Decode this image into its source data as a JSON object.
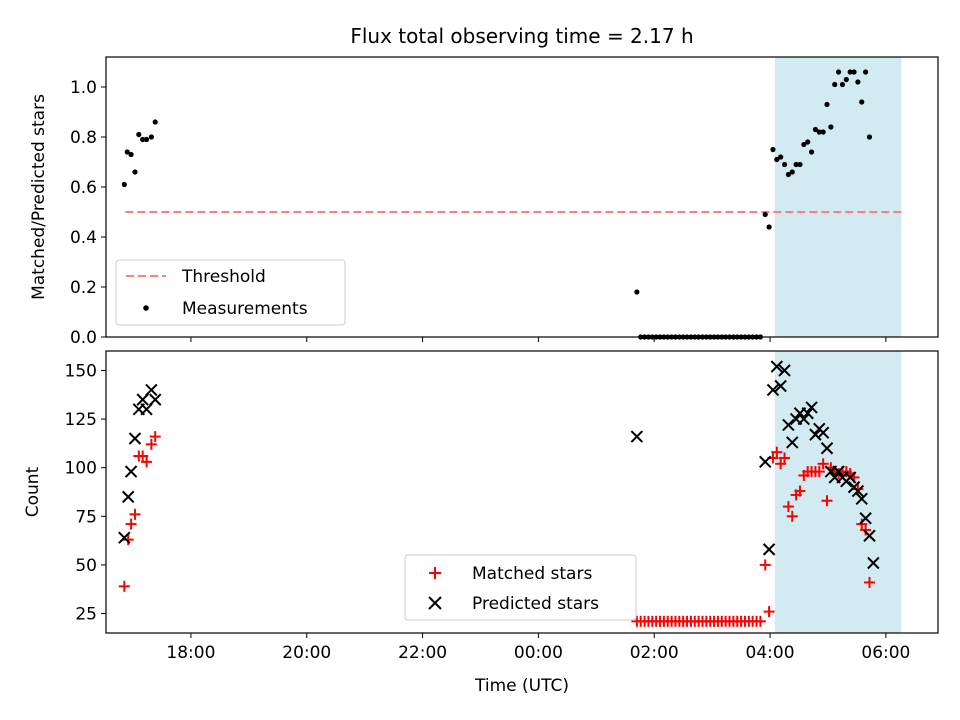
{
  "title": "Flux total observing time = 2.17 h",
  "colors": {
    "threshold": "#ff7f7f",
    "measurement": "#000000",
    "matched": "#ff0000",
    "predicted": "#000000",
    "band": "#add8e6"
  },
  "chart_data": [
    {
      "type": "scatter",
      "ylabel": "Matched/Predicted stars",
      "xlabel": "",
      "ylim": [
        0,
        1.12
      ],
      "xlim": [
        "16:32",
        "06:54"
      ],
      "yticks": [
        "0.0",
        "0.2",
        "0.4",
        "0.6",
        "0.8",
        "1.0"
      ],
      "shaded_band": {
        "x0": "04:05",
        "x1": "06:16"
      },
      "legend": {
        "position": "lower-left",
        "entries": [
          "Threshold",
          "Measurements"
        ]
      },
      "threshold": {
        "name": "Threshold",
        "y": 0.5,
        "x_from": "16:52",
        "x_to": "06:16"
      },
      "series": [
        {
          "name": "Measurements",
          "points": [
            [
              "16:51",
              0.61
            ],
            [
              "16:54",
              0.74
            ],
            [
              "16:58",
              0.73
            ],
            [
              "17:02",
              0.66
            ],
            [
              "17:06",
              0.81
            ],
            [
              "17:10",
              0.79
            ],
            [
              "17:14",
              0.79
            ],
            [
              "17:19",
              0.8
            ],
            [
              "17:23",
              0.86
            ],
            [
              "01:42",
              0.18
            ],
            [
              "01:46",
              0.0
            ],
            [
              "01:50",
              0.0
            ],
            [
              "01:54",
              0.0
            ],
            [
              "01:58",
              0.0
            ],
            [
              "02:02",
              0.0
            ],
            [
              "02:06",
              0.0
            ],
            [
              "02:10",
              0.0
            ],
            [
              "02:14",
              0.0
            ],
            [
              "02:18",
              0.0
            ],
            [
              "02:22",
              0.0
            ],
            [
              "02:26",
              0.0
            ],
            [
              "02:30",
              0.0
            ],
            [
              "02:34",
              0.0
            ],
            [
              "02:38",
              0.0
            ],
            [
              "02:42",
              0.0
            ],
            [
              "02:46",
              0.0
            ],
            [
              "02:50",
              0.0
            ],
            [
              "02:54",
              0.0
            ],
            [
              "02:58",
              0.0
            ],
            [
              "03:02",
              0.0
            ],
            [
              "03:06",
              0.0
            ],
            [
              "03:10",
              0.0
            ],
            [
              "03:14",
              0.0
            ],
            [
              "03:18",
              0.0
            ],
            [
              "03:22",
              0.0
            ],
            [
              "03:26",
              0.0
            ],
            [
              "03:30",
              0.0
            ],
            [
              "03:34",
              0.0
            ],
            [
              "03:38",
              0.0
            ],
            [
              "03:42",
              0.0
            ],
            [
              "03:46",
              0.0
            ],
            [
              "03:50",
              0.0
            ],
            [
              "03:55",
              0.49
            ],
            [
              "03:59",
              0.44
            ],
            [
              "04:03",
              0.75
            ],
            [
              "04:07",
              0.71
            ],
            [
              "04:11",
              0.72
            ],
            [
              "04:15",
              0.69
            ],
            [
              "04:19",
              0.65
            ],
            [
              "04:23",
              0.66
            ],
            [
              "04:27",
              0.69
            ],
            [
              "04:31",
              0.69
            ],
            [
              "04:35",
              0.77
            ],
            [
              "04:39",
              0.78
            ],
            [
              "04:43",
              0.74
            ],
            [
              "04:47",
              0.83
            ],
            [
              "04:51",
              0.82
            ],
            [
              "04:55",
              0.82
            ],
            [
              "04:59",
              0.93
            ],
            [
              "05:03",
              0.84
            ],
            [
              "05:07",
              1.01
            ],
            [
              "05:11",
              1.06
            ],
            [
              "05:15",
              1.01
            ],
            [
              "05:19",
              1.03
            ],
            [
              "05:23",
              1.06
            ],
            [
              "05:27",
              1.06
            ],
            [
              "05:31",
              1.02
            ],
            [
              "05:35",
              0.94
            ],
            [
              "05:39",
              1.06
            ],
            [
              "05:43",
              0.8
            ]
          ]
        }
      ]
    },
    {
      "type": "scatter",
      "xlabel": "Time (UTC)",
      "ylabel": "Count",
      "ylim": [
        15,
        160
      ],
      "xlim": [
        "16:32",
        "06:54"
      ],
      "xticks": [
        "18:00",
        "20:00",
        "22:00",
        "00:00",
        "02:00",
        "04:00",
        "06:00"
      ],
      "yticks": [
        "25",
        "50",
        "75",
        "100",
        "125",
        "150"
      ],
      "shaded_band": {
        "x0": "04:05",
        "x1": "06:16"
      },
      "legend": {
        "position": "lower-center",
        "entries": [
          "Matched stars",
          "Predicted stars"
        ]
      },
      "series": [
        {
          "name": "Matched stars",
          "marker": "plus",
          "points": [
            [
              "16:51",
              39
            ],
            [
              "16:55",
              63
            ],
            [
              "16:58",
              71
            ],
            [
              "17:02",
              76
            ],
            [
              "17:06",
              106
            ],
            [
              "17:10",
              106
            ],
            [
              "17:14",
              103
            ],
            [
              "17:19",
              112
            ],
            [
              "17:23",
              116
            ],
            [
              "01:42",
              21
            ],
            [
              "01:46",
              21
            ],
            [
              "01:50",
              21
            ],
            [
              "01:54",
              21
            ],
            [
              "01:58",
              21
            ],
            [
              "02:02",
              21
            ],
            [
              "02:06",
              21
            ],
            [
              "02:10",
              21
            ],
            [
              "02:14",
              21
            ],
            [
              "02:18",
              21
            ],
            [
              "02:22",
              21
            ],
            [
              "02:26",
              21
            ],
            [
              "02:30",
              21
            ],
            [
              "02:34",
              21
            ],
            [
              "02:38",
              21
            ],
            [
              "02:42",
              21
            ],
            [
              "02:46",
              21
            ],
            [
              "02:50",
              21
            ],
            [
              "02:54",
              21
            ],
            [
              "02:58",
              21
            ],
            [
              "03:02",
              21
            ],
            [
              "03:06",
              21
            ],
            [
              "03:10",
              21
            ],
            [
              "03:14",
              21
            ],
            [
              "03:18",
              21
            ],
            [
              "03:22",
              21
            ],
            [
              "03:26",
              21
            ],
            [
              "03:30",
              21
            ],
            [
              "03:34",
              21
            ],
            [
              "03:38",
              21
            ],
            [
              "03:42",
              21
            ],
            [
              "03:46",
              21
            ],
            [
              "03:50",
              21
            ],
            [
              "03:55",
              50
            ],
            [
              "03:59",
              26
            ],
            [
              "04:03",
              105
            ],
            [
              "04:07",
              108
            ],
            [
              "04:11",
              102
            ],
            [
              "04:15",
              105
            ],
            [
              "04:19",
              80
            ],
            [
              "04:23",
              75
            ],
            [
              "04:27",
              86
            ],
            [
              "04:31",
              88
            ],
            [
              "04:35",
              96
            ],
            [
              "04:39",
              98
            ],
            [
              "04:43",
              98
            ],
            [
              "04:47",
              98
            ],
            [
              "04:51",
              98
            ],
            [
              "04:55",
              102
            ],
            [
              "04:59",
              83
            ],
            [
              "05:03",
              100
            ],
            [
              "05:07",
              98
            ],
            [
              "05:11",
              97
            ],
            [
              "05:15",
              98
            ],
            [
              "05:19",
              98
            ],
            [
              "05:23",
              97
            ],
            [
              "05:27",
              95
            ],
            [
              "05:31",
              89
            ],
            [
              "05:35",
              71
            ],
            [
              "05:39",
              68
            ],
            [
              "05:43",
              41
            ]
          ]
        },
        {
          "name": "Predicted stars",
          "marker": "x",
          "points": [
            [
              "16:51",
              64
            ],
            [
              "16:55",
              85
            ],
            [
              "16:58",
              98
            ],
            [
              "17:02",
              115
            ],
            [
              "17:06",
              130
            ],
            [
              "17:10",
              135
            ],
            [
              "17:14",
              130
            ],
            [
              "17:19",
              140
            ],
            [
              "17:23",
              135
            ],
            [
              "01:42",
              116
            ],
            [
              "03:55",
              103
            ],
            [
              "03:59",
              58
            ],
            [
              "04:03",
              140
            ],
            [
              "04:07",
              152
            ],
            [
              "04:11",
              142
            ],
            [
              "04:15",
              150
            ],
            [
              "04:19",
              122
            ],
            [
              "04:23",
              113
            ],
            [
              "04:27",
              125
            ],
            [
              "04:31",
              128
            ],
            [
              "04:35",
              125
            ],
            [
              "04:39",
              128
            ],
            [
              "04:43",
              131
            ],
            [
              "04:47",
              117
            ],
            [
              "04:51",
              120
            ],
            [
              "04:55",
              118
            ],
            [
              "04:59",
              110
            ],
            [
              "05:03",
              98
            ],
            [
              "05:07",
              95
            ],
            [
              "05:11",
              98
            ],
            [
              "05:15",
              95
            ],
            [
              "05:19",
              93
            ],
            [
              "05:23",
              95
            ],
            [
              "05:27",
              90
            ],
            [
              "05:31",
              88
            ],
            [
              "05:35",
              84
            ],
            [
              "05:39",
              74
            ],
            [
              "05:43",
              65
            ],
            [
              "05:47",
              51
            ]
          ]
        }
      ]
    }
  ]
}
